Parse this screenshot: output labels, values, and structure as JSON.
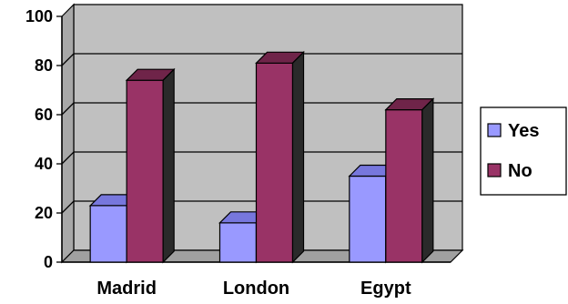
{
  "chart_data": {
    "type": "bar",
    "categories": [
      "Madrid",
      "London",
      "Egypt"
    ],
    "series": [
      {
        "name": "Yes",
        "values": [
          23,
          16,
          35
        ]
      },
      {
        "name": "No",
        "values": [
          74,
          81,
          62
        ]
      }
    ],
    "ylim": [
      0,
      100
    ],
    "yticks": [
      0,
      20,
      40,
      60,
      80,
      100
    ],
    "grid": true,
    "three_d": true,
    "legend": "right",
    "title": "",
    "xlabel": "",
    "ylabel": ""
  },
  "colors": {
    "wall": "#c0c0c0",
    "floor": "#a0a0a0",
    "yes_front": "#9999ff",
    "yes_top": "#7777dd",
    "yes_side": "#4f4f8a",
    "no_front": "#993366",
    "no_top": "#6f2449",
    "no_side": "#2a2a2a"
  }
}
